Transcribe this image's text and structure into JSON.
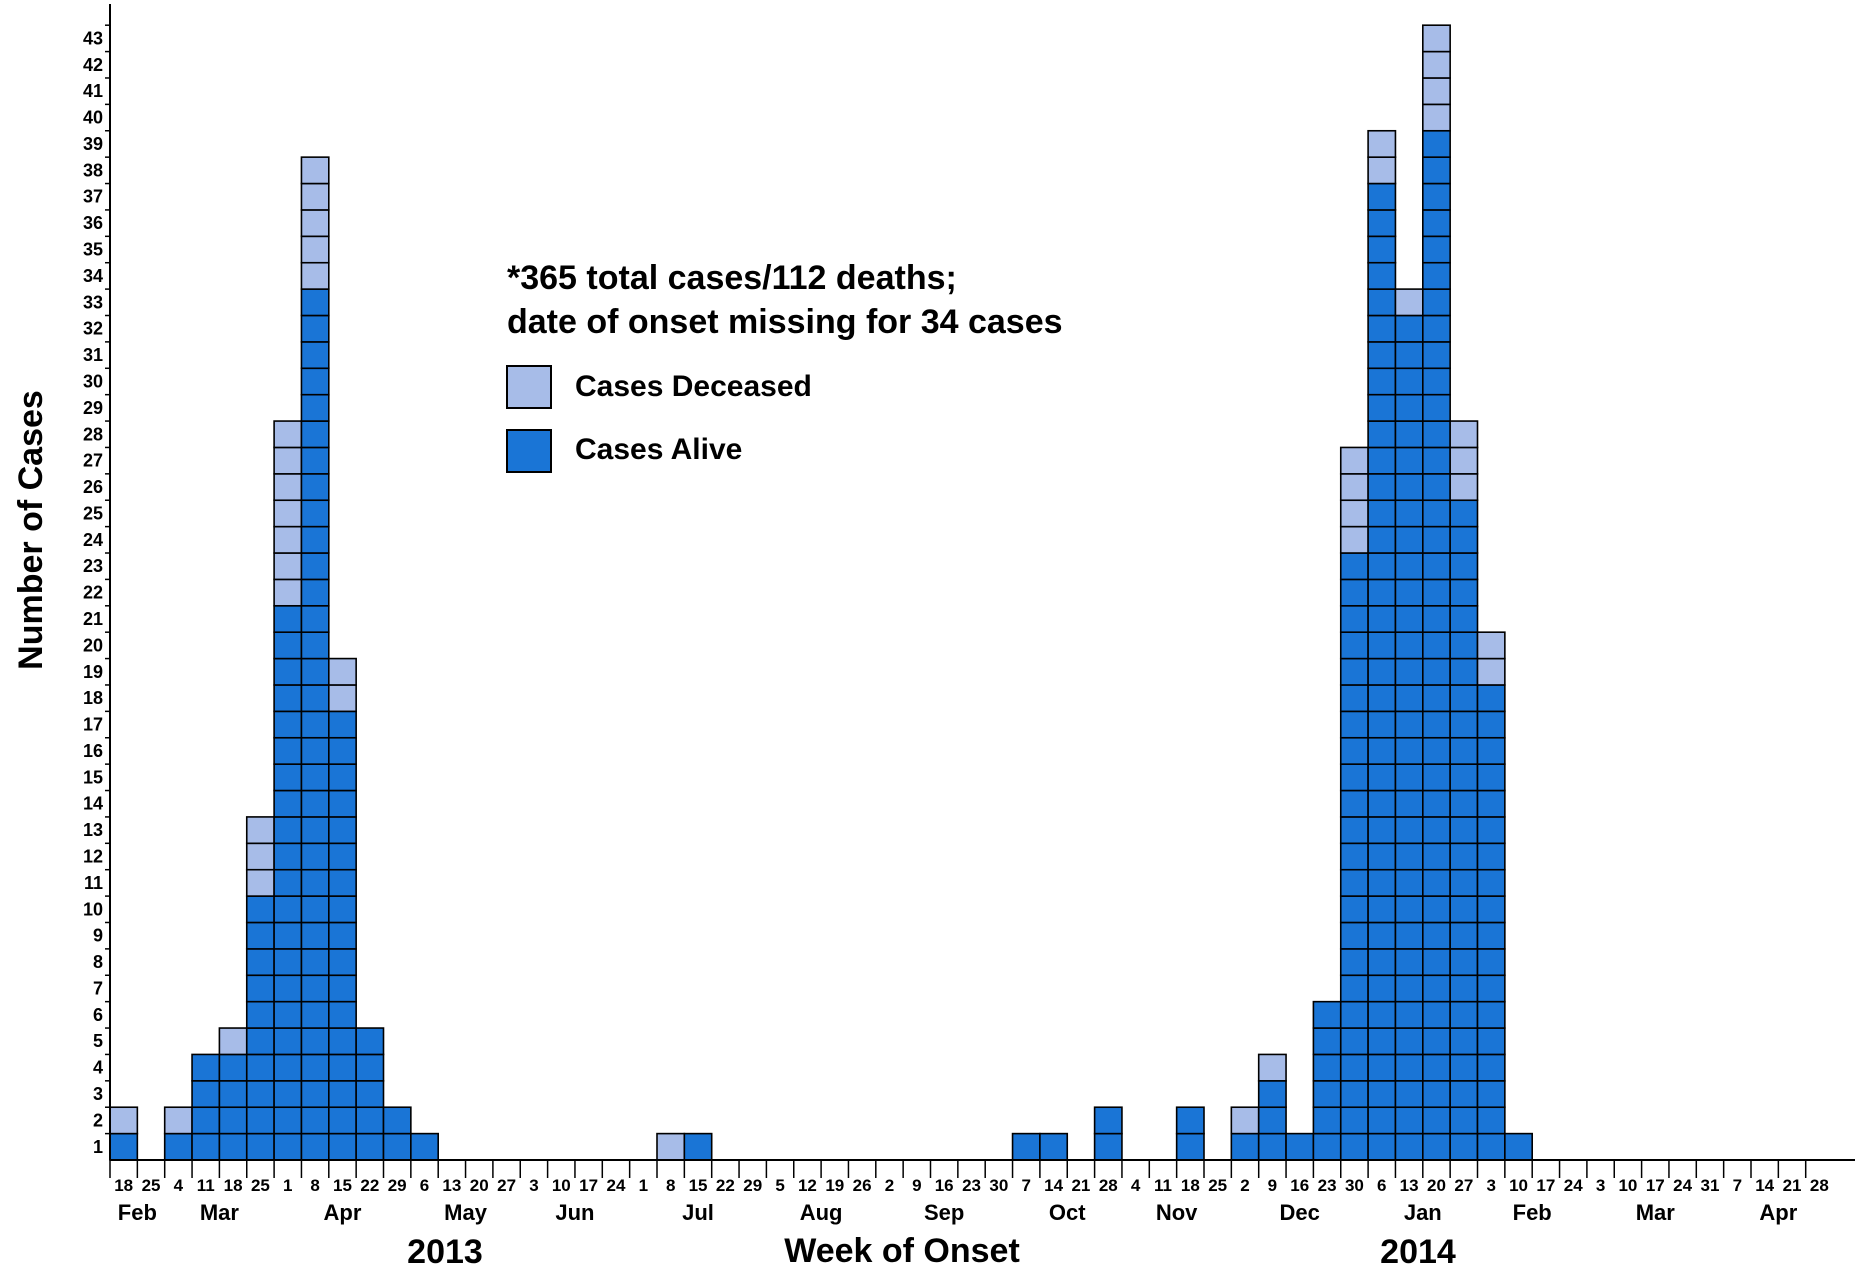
{
  "chart_data": {
    "type": "bar",
    "stacked": true,
    "unit_boxes": true,
    "title": "",
    "xlabel": "Week of Onset",
    "ylabel": "Number of Cases",
    "ylim": [
      0,
      43
    ],
    "y_ticks": [
      1,
      2,
      3,
      4,
      5,
      6,
      7,
      8,
      9,
      10,
      11,
      12,
      13,
      14,
      15,
      16,
      17,
      18,
      19,
      20,
      21,
      22,
      23,
      24,
      25,
      26,
      27,
      28,
      29,
      30,
      31,
      32,
      33,
      34,
      35,
      36,
      37,
      38,
      39,
      40,
      41,
      42,
      43
    ],
    "grid": false,
    "legend_position": "upper-center",
    "annotation": {
      "line1": "*365 total cases/112 deaths;",
      "line2": "date of onset missing for 34 cases"
    },
    "categories": [
      "18",
      "25",
      "4",
      "11",
      "18",
      "25",
      "1",
      "8",
      "15",
      "22",
      "29",
      "6",
      "13",
      "20",
      "27",
      "3",
      "10",
      "17",
      "24",
      "1",
      "8",
      "15",
      "22",
      "29",
      "5",
      "12",
      "19",
      "26",
      "2",
      "9",
      "16",
      "23",
      "30",
      "7",
      "14",
      "21",
      "28",
      "4",
      "11",
      "18",
      "25",
      "2",
      "9",
      "16",
      "23",
      "30",
      "6",
      "13",
      "20",
      "27",
      "3",
      "10",
      "17",
      "24",
      "3",
      "10",
      "17",
      "24",
      "31",
      "7",
      "14",
      "21",
      "28"
    ],
    "months": [
      {
        "label": "Feb",
        "start": 0,
        "end": 1
      },
      {
        "label": "Mar",
        "start": 2,
        "end": 5
      },
      {
        "label": "Apr",
        "start": 6,
        "end": 10
      },
      {
        "label": "May",
        "start": 11,
        "end": 14
      },
      {
        "label": "Jun",
        "start": 15,
        "end": 18
      },
      {
        "label": "Jul",
        "start": 19,
        "end": 23
      },
      {
        "label": "Aug",
        "start": 24,
        "end": 27
      },
      {
        "label": "Sep",
        "start": 28,
        "end": 32
      },
      {
        "label": "Oct",
        "start": 33,
        "end": 36
      },
      {
        "label": "Nov",
        "start": 37,
        "end": 40
      },
      {
        "label": "Dec",
        "start": 41,
        "end": 45
      },
      {
        "label": "Jan",
        "start": 46,
        "end": 49
      },
      {
        "label": "Feb",
        "start": 50,
        "end": 53
      },
      {
        "label": "Mar",
        "start": 54,
        "end": 58
      },
      {
        "label": "Apr",
        "start": 59,
        "end": 62
      }
    ],
    "years": [
      {
        "label": "2013",
        "start": 0,
        "end": 45
      },
      {
        "label": "2014",
        "start": 46,
        "end": 62
      }
    ],
    "series": [
      {
        "name": "Cases Alive",
        "color": "#1a75d6",
        "values": [
          1,
          0,
          1,
          4,
          4,
          10,
          21,
          33,
          17,
          5,
          2,
          1,
          0,
          0,
          0,
          0,
          0,
          0,
          0,
          0,
          0,
          1,
          0,
          0,
          0,
          0,
          0,
          0,
          0,
          0,
          0,
          0,
          0,
          1,
          1,
          0,
          2,
          0,
          0,
          2,
          0,
          1,
          3,
          1,
          6,
          23,
          37,
          32,
          39,
          25,
          18,
          1,
          0,
          0,
          0,
          0,
          0,
          0,
          0,
          0,
          0,
          0,
          0
        ]
      },
      {
        "name": "Cases Deceased",
        "color": "#a7bce8",
        "values": [
          1,
          0,
          1,
          0,
          1,
          3,
          7,
          5,
          2,
          0,
          0,
          0,
          0,
          0,
          0,
          0,
          0,
          0,
          0,
          0,
          1,
          0,
          0,
          0,
          0,
          0,
          0,
          0,
          0,
          0,
          0,
          0,
          0,
          0,
          0,
          0,
          0,
          0,
          0,
          0,
          0,
          1,
          1,
          0,
          0,
          4,
          2,
          1,
          4,
          3,
          2,
          0,
          0,
          0,
          0,
          0,
          0,
          0,
          0,
          0,
          0,
          0,
          0
        ]
      }
    ]
  }
}
